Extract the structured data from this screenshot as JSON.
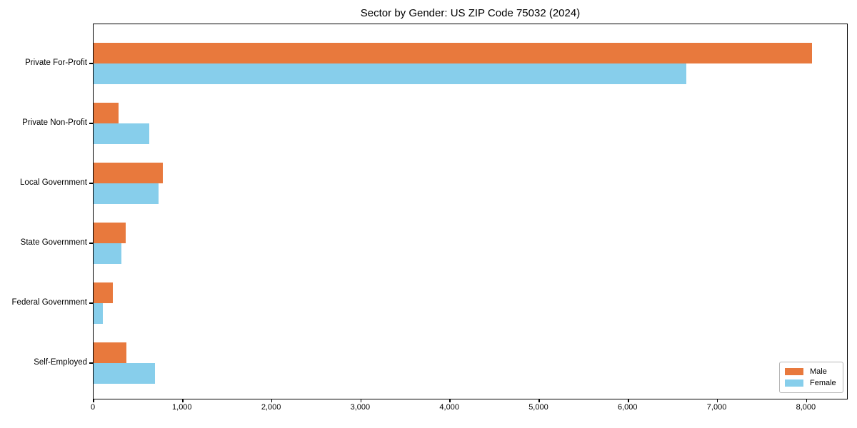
{
  "chart_data": {
    "type": "bar",
    "orientation": "horizontal",
    "title": "Sector by Gender: US ZIP Code 75032 (2024)",
    "categories": [
      "Private For-Profit",
      "Private Non-Profit",
      "Local Government",
      "State Government",
      "Federal Government",
      "Self-Employed"
    ],
    "series": [
      {
        "name": "Male",
        "color": "#e8793d",
        "values": [
          8060,
          280,
          780,
          360,
          215,
          365
        ]
      },
      {
        "name": "Female",
        "color": "#87ceeb",
        "values": [
          6650,
          625,
          725,
          310,
          105,
          690
        ]
      }
    ],
    "xlabel": "",
    "ylabel": "",
    "xlim": [
      0,
      8470
    ],
    "xticks": [
      0,
      1000,
      2000,
      3000,
      4000,
      5000,
      6000,
      7000,
      8000
    ],
    "xtick_labels": [
      "0",
      "1,000",
      "2,000",
      "3,000",
      "4,000",
      "5,000",
      "6,000",
      "7,000",
      "8,000"
    ],
    "grid": false,
    "legend": {
      "position": "lower right"
    },
    "colors": {
      "axis": "#000000",
      "legend_border": "#b7b7b7"
    }
  }
}
